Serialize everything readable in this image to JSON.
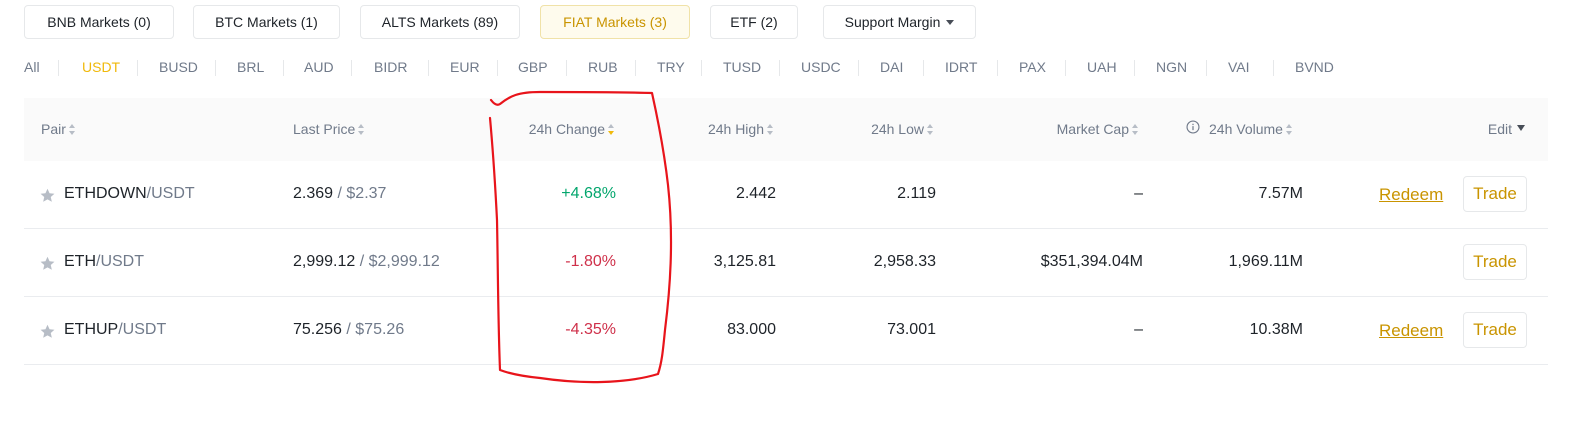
{
  "market_tabs": [
    {
      "label": "BNB Markets (0)",
      "active": false
    },
    {
      "label": "BTC Markets (1)",
      "active": false
    },
    {
      "label": "ALTS Markets (89)",
      "active": false
    },
    {
      "label": "FIAT Markets (3)",
      "active": true
    },
    {
      "label": "ETF (2)",
      "active": false
    },
    {
      "label": "Support Margin",
      "active": false,
      "dropdown": true
    }
  ],
  "quote_tabs": [
    {
      "label": "All",
      "active": false
    },
    {
      "label": "USDT",
      "active": true
    },
    {
      "label": "BUSD"
    },
    {
      "label": "BRL"
    },
    {
      "label": "AUD"
    },
    {
      "label": "BIDR"
    },
    {
      "label": "EUR"
    },
    {
      "label": "GBP"
    },
    {
      "label": "RUB"
    },
    {
      "label": "TRY"
    },
    {
      "label": "TUSD"
    },
    {
      "label": "USDC"
    },
    {
      "label": "DAI"
    },
    {
      "label": "IDRT"
    },
    {
      "label": "PAX"
    },
    {
      "label": "UAH"
    },
    {
      "label": "NGN"
    },
    {
      "label": "VAI"
    },
    {
      "label": "BVND"
    }
  ],
  "columns": {
    "pair": "Pair",
    "last_price": "Last Price",
    "change": "24h Change",
    "high": "24h High",
    "low": "24h Low",
    "market_cap": "Market Cap",
    "volume": "24h Volume",
    "edit": "Edit"
  },
  "rows": [
    {
      "base": "ETHDOWN",
      "quote": "/USDT",
      "price": "2.369",
      "usd": "/ $2.37",
      "change": "+4.68%",
      "direction": "up",
      "high": "2.442",
      "low": "2.119",
      "market_cap": "–",
      "volume": "7.57M",
      "redeem": "Redeem",
      "trade": "Trade"
    },
    {
      "base": "ETH",
      "quote": "/USDT",
      "price": "2,999.12",
      "usd": "/ $2,999.12",
      "change": "-1.80%",
      "direction": "down",
      "high": "3,125.81",
      "low": "2,958.33",
      "market_cap": "$351,394.04M",
      "volume": "1,969.11M",
      "redeem": "",
      "trade": "Trade"
    },
    {
      "base": "ETHUP",
      "quote": "/USDT",
      "price": "75.256",
      "usd": "/ $75.26",
      "change": "-4.35%",
      "direction": "down",
      "high": "83.000",
      "low": "73.001",
      "market_cap": "–",
      "volume": "10.38M",
      "redeem": "Redeem",
      "trade": "Trade"
    }
  ],
  "colors": {
    "accent": "#f0b90b",
    "accent_text": "#c99400",
    "positive": "#03a66d",
    "negative": "#cf304a",
    "annotation": "#e8141b"
  },
  "icons": {
    "favorite": "star-icon",
    "volume_info": "info-icon",
    "sort": "sort-icon",
    "dropdown": "caret-down-icon"
  }
}
